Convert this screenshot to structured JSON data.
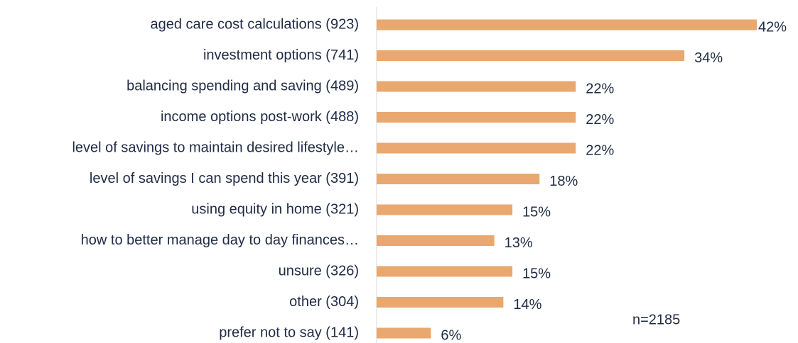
{
  "chart_data": {
    "type": "barh",
    "categories": [
      "aged care cost calculations (923)",
      "investment options (741)",
      "balancing spending and saving (489)",
      "income options post-work (488)",
      "level of savings to maintain desired lifestyle…",
      "level of savings I can spend this year (391)",
      "using equity in home (321)",
      "how to better manage day to day finances…",
      "unsure (326)",
      "other (304)",
      "prefer not to say (141)"
    ],
    "values": [
      42,
      34,
      22,
      22,
      22,
      18,
      15,
      13,
      15,
      14,
      6
    ],
    "value_labels": [
      "42%",
      "34%",
      "22%",
      "22%",
      "22%",
      "18%",
      "15%",
      "13%",
      "15%",
      "14%",
      "6%"
    ],
    "color": "#e8a86f",
    "xlim": [
      0,
      42
    ],
    "annotation": "n=2185"
  }
}
